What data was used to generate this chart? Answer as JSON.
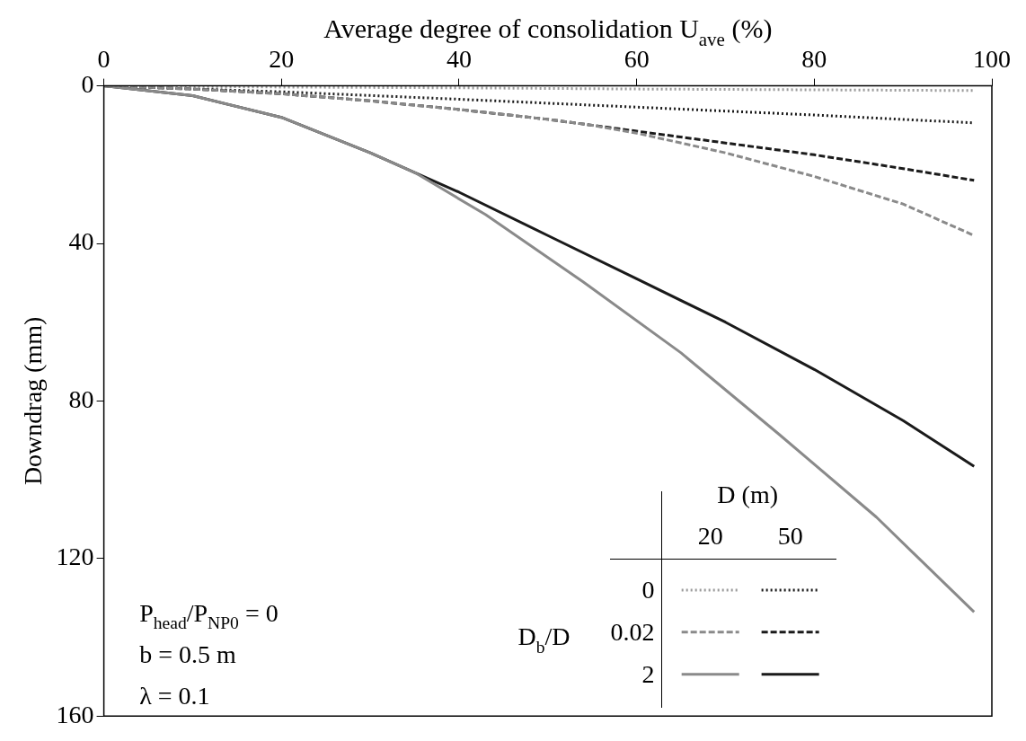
{
  "chart_data": {
    "type": "line",
    "xlabel": "Average degree of consolidation U$_{ave}$ (%)",
    "ylabel": "Downdrag (mm)",
    "legend_title": "D (m)",
    "legend": "bottom right",
    "grid": false,
    "marker": "none",
    "xlim": [
      0,
      100
    ],
    "xticks": [
      0,
      20,
      40,
      60,
      80,
      100
    ],
    "ylim": [
      160,
      0
    ],
    "yticks": [
      0,
      40,
      80,
      120,
      160
    ],
    "annotations": [
      "P$_{head}$/P$_{NP0}$ = 0",
      "b = 0.5 m",
      "λ = 0.1",
      "D$_{b}$/D",
      "20",
      "50"
    ],
    "series": [
      {
        "name": "0",
        "color": "#9a9a9a",
        "line_style": "dotted",
        "x": [
          0,
          20,
          40,
          60,
          80,
          98
        ],
        "values": [
          0,
          0.3,
          0.5,
          0.8,
          1,
          1.2
        ]
      },
      {
        "name": "0.02",
        "color": "#8a8a8a",
        "line_style": "dashed",
        "x": [
          0,
          10,
          20,
          30,
          40,
          50,
          55,
          60,
          70,
          80,
          90,
          98
        ],
        "values": [
          0,
          0.8,
          2,
          3.8,
          6,
          8.5,
          10,
          12,
          17,
          23,
          30,
          38
        ]
      },
      {
        "name": "2",
        "color": "#8a8a8a",
        "line_style": "solid",
        "x": [
          0,
          10,
          20,
          30,
          35,
          43,
          54,
          65,
          76,
          87,
          98
        ],
        "values": [
          0,
          2.5,
          8,
          17,
          22,
          32.7,
          49.8,
          67.8,
          88.4,
          109.5,
          133.6
        ]
      },
      {
        "color": "#1a1a1a",
        "line_style": "dotted",
        "x": [
          0,
          20,
          40,
          60,
          80,
          98
        ],
        "values": [
          0,
          1.5,
          3.4,
          5.4,
          7.4,
          9.4
        ]
      },
      {
        "color": "#1a1a1a",
        "line_style": "dashed",
        "x": [
          0,
          10,
          20,
          30,
          40,
          50,
          60,
          70,
          80,
          90,
          98
        ],
        "values": [
          0,
          0.8,
          2,
          3.8,
          6,
          8.5,
          11.5,
          14.5,
          17.5,
          21,
          24
        ]
      },
      {
        "color": "#1a1a1a",
        "line_style": "solid",
        "x": [
          0,
          10,
          20,
          30,
          40,
          50,
          60,
          70,
          80,
          90,
          98
        ],
        "values": [
          0,
          2.5,
          8,
          17,
          27,
          38,
          49,
          60,
          72,
          85,
          96.6
        ]
      }
    ]
  }
}
